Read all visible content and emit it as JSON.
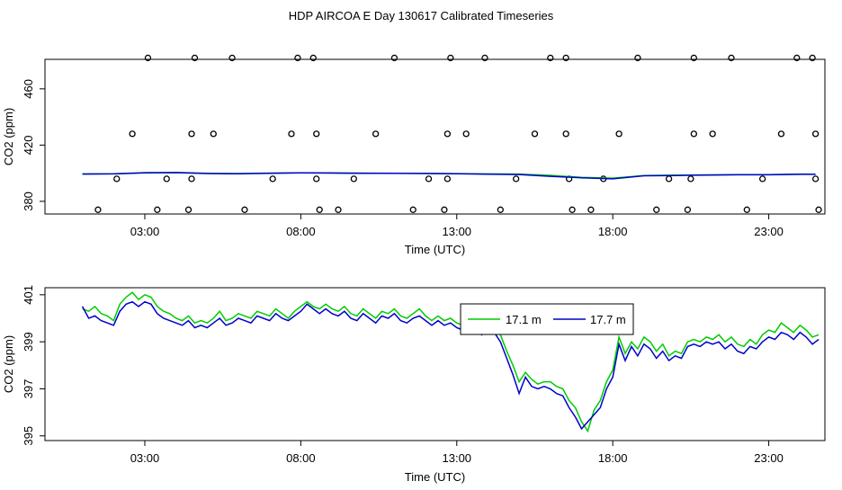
{
  "page_title": "HDP AIRCOA E  Day 130617  Calibrated Timeseries",
  "chart_data": [
    {
      "type": "scatter",
      "xlabel": "Time (UTC)",
      "ylabel": "CO2 (ppm)",
      "x_ticks": [
        {
          "hours": 3,
          "label": "03:00"
        },
        {
          "hours": 8,
          "label": "08:00"
        },
        {
          "hours": 13,
          "label": "13:00"
        },
        {
          "hours": 18,
          "label": "18:00"
        },
        {
          "hours": 23,
          "label": "23:00"
        }
      ],
      "y_ticks": [
        380,
        420,
        460
      ],
      "xlim": [
        -0.2,
        24.8
      ],
      "ylim": [
        371,
        481
      ],
      "grid": false,
      "series": [
        {
          "color": "#000000",
          "marker": "open-circle",
          "points": [
            [
              1.5,
              374
            ],
            [
              2.6,
              428
            ],
            [
              2.1,
              396
            ],
            [
              3.1,
              482
            ],
            [
              3.4,
              374
            ],
            [
              3.7,
              396
            ],
            [
              4.4,
              374
            ],
            [
              4.5,
              396
            ],
            [
              4.5,
              428
            ],
            [
              4.6,
              482
            ],
            [
              5.2,
              428
            ],
            [
              5.8,
              482
            ],
            [
              6.2,
              374
            ],
            [
              7.1,
              396
            ],
            [
              7.7,
              428
            ],
            [
              7.9,
              482
            ],
            [
              8.4,
              482
            ],
            [
              8.5,
              428
            ],
            [
              8.5,
              396
            ],
            [
              8.6,
              374
            ],
            [
              9.2,
              374
            ],
            [
              9.7,
              396
            ],
            [
              10.4,
              428
            ],
            [
              11.0,
              482
            ],
            [
              11.6,
              374
            ],
            [
              12.1,
              396
            ],
            [
              12.6,
              374
            ],
            [
              12.7,
              396
            ],
            [
              12.7,
              428
            ],
            [
              12.8,
              482
            ],
            [
              13.3,
              428
            ],
            [
              13.9,
              482
            ],
            [
              14.4,
              374
            ],
            [
              14.9,
              396
            ],
            [
              15.5,
              428
            ],
            [
              16.0,
              482
            ],
            [
              16.5,
              482
            ],
            [
              16.5,
              428
            ],
            [
              16.6,
              396
            ],
            [
              16.7,
              374
            ],
            [
              17.3,
              374
            ],
            [
              17.7,
              396
            ],
            [
              18.2,
              428
            ],
            [
              18.8,
              482
            ],
            [
              19.4,
              374
            ],
            [
              19.8,
              396
            ],
            [
              20.4,
              374
            ],
            [
              20.5,
              396
            ],
            [
              20.6,
              428
            ],
            [
              20.6,
              482
            ],
            [
              21.2,
              428
            ],
            [
              21.8,
              482
            ],
            [
              22.3,
              374
            ],
            [
              22.8,
              396
            ],
            [
              23.4,
              428
            ],
            [
              23.9,
              482
            ],
            [
              24.4,
              482
            ],
            [
              24.5,
              428
            ],
            [
              24.5,
              396
            ],
            [
              24.6,
              374
            ]
          ]
        },
        {
          "color": "#00cc00",
          "style": "line",
          "x": [
            1,
            2,
            3,
            4,
            5,
            6,
            7,
            8,
            9,
            10,
            11,
            12,
            13,
            14,
            15,
            16,
            17,
            18,
            19,
            20,
            21,
            22,
            23,
            24,
            24.5
          ],
          "y": [
            399.5,
            399.6,
            400.4,
            400.6,
            400.0,
            399.8,
            400.1,
            400.3,
            400.2,
            400.1,
            400.0,
            399.9,
            399.7,
            399.5,
            399.4,
            398.5,
            397.0,
            396.5,
            398.4,
            398.6,
            398.8,
            399.0,
            399.0,
            399.4,
            399.3
          ]
        },
        {
          "color": "#0000cc",
          "style": "line",
          "x": [
            1,
            2,
            3,
            4,
            5,
            6,
            7,
            8,
            9,
            10,
            11,
            12,
            13,
            14,
            15,
            16,
            17,
            18,
            19,
            20,
            21,
            22,
            23,
            24,
            24.5
          ],
          "y": [
            399.4,
            399.5,
            400.2,
            400.4,
            399.8,
            399.6,
            399.9,
            400.2,
            400.1,
            400.0,
            399.9,
            399.8,
            399.6,
            399.3,
            399.1,
            397.8,
            396.8,
            396.0,
            398.2,
            398.4,
            398.7,
            398.9,
            398.9,
            399.2,
            399.2
          ]
        }
      ]
    },
    {
      "type": "line",
      "xlabel": "Time (UTC)",
      "ylabel": "CO2 (ppm)",
      "x_ticks": [
        {
          "hours": 3,
          "label": "03:00"
        },
        {
          "hours": 8,
          "label": "08:00"
        },
        {
          "hours": 13,
          "label": "13:00"
        },
        {
          "hours": 18,
          "label": "18:00"
        },
        {
          "hours": 23,
          "label": "23:00"
        }
      ],
      "y_ticks": [
        395,
        397,
        399,
        401
      ],
      "xlim": [
        -0.2,
        24.8
      ],
      "ylim": [
        394.8,
        401.3
      ],
      "grid": false,
      "legend": {
        "placement": "top-center"
      },
      "series": [
        {
          "name": "17.1 m",
          "color": "#00cc00",
          "x": [
            1.0,
            1.2,
            1.4,
            1.6,
            1.8,
            2.0,
            2.2,
            2.4,
            2.6,
            2.8,
            3.0,
            3.2,
            3.4,
            3.6,
            3.8,
            4.0,
            4.2,
            4.4,
            4.6,
            4.8,
            5.0,
            5.2,
            5.4,
            5.6,
            5.8,
            6.0,
            6.2,
            6.4,
            6.6,
            6.8,
            7.0,
            7.2,
            7.4,
            7.6,
            7.8,
            8.0,
            8.2,
            8.4,
            8.6,
            8.8,
            9.0,
            9.2,
            9.4,
            9.6,
            9.8,
            10.0,
            10.2,
            10.4,
            10.6,
            10.8,
            11.0,
            11.2,
            11.4,
            11.6,
            11.8,
            12.0,
            12.2,
            12.4,
            12.6,
            12.8,
            13.0,
            13.2,
            13.4,
            13.6,
            13.8,
            14.0,
            14.2,
            14.4,
            14.6,
            14.8,
            15.0,
            15.2,
            15.4,
            15.6,
            15.8,
            16.0,
            16.2,
            16.4,
            16.6,
            16.8,
            17.0,
            17.2,
            17.4,
            17.6,
            17.8,
            18.0,
            18.2,
            18.4,
            18.6,
            18.8,
            19.0,
            19.2,
            19.4,
            19.6,
            19.8,
            20.0,
            20.2,
            20.4,
            20.6,
            20.8,
            21.0,
            21.2,
            21.4,
            21.6,
            21.8,
            22.0,
            22.2,
            22.4,
            22.6,
            22.8,
            23.0,
            23.2,
            23.4,
            23.6,
            23.8,
            24.0,
            24.2,
            24.4,
            24.6
          ],
          "y": [
            400.4,
            400.3,
            400.5,
            400.2,
            400.1,
            399.9,
            400.6,
            400.9,
            401.1,
            400.8,
            401.0,
            400.9,
            400.5,
            400.3,
            400.2,
            400.0,
            399.9,
            400.1,
            399.8,
            399.9,
            399.8,
            400.0,
            400.3,
            399.9,
            400.0,
            400.2,
            400.1,
            400.0,
            400.3,
            400.2,
            400.1,
            400.4,
            400.2,
            400.0,
            400.3,
            400.5,
            400.7,
            400.5,
            400.4,
            400.6,
            400.4,
            400.3,
            400.5,
            400.2,
            400.1,
            400.4,
            400.2,
            400.0,
            400.3,
            400.2,
            400.4,
            400.1,
            400.0,
            400.2,
            400.4,
            400.1,
            399.9,
            400.1,
            399.9,
            400.0,
            399.8,
            399.7,
            399.9,
            399.8,
            399.5,
            399.7,
            399.6,
            399.3,
            398.6,
            398.0,
            397.3,
            397.7,
            397.4,
            397.2,
            397.3,
            397.3,
            397.1,
            397.0,
            396.5,
            396.2,
            395.6,
            395.2,
            396.1,
            396.5,
            397.3,
            397.8,
            399.2,
            398.5,
            399.0,
            398.7,
            399.2,
            399.0,
            398.6,
            398.9,
            398.4,
            398.6,
            398.5,
            399.0,
            399.1,
            399.0,
            399.2,
            399.1,
            399.3,
            399.0,
            399.2,
            398.9,
            398.8,
            399.1,
            398.9,
            399.3,
            399.5,
            399.4,
            399.8,
            399.6,
            399.4,
            399.7,
            399.5,
            399.2,
            399.3
          ]
        },
        {
          "name": "17.7 m",
          "color": "#0000cc",
          "x": [
            1.0,
            1.2,
            1.4,
            1.6,
            1.8,
            2.0,
            2.2,
            2.4,
            2.6,
            2.8,
            3.0,
            3.2,
            3.4,
            3.6,
            3.8,
            4.0,
            4.2,
            4.4,
            4.6,
            4.8,
            5.0,
            5.2,
            5.4,
            5.6,
            5.8,
            6.0,
            6.2,
            6.4,
            6.6,
            6.8,
            7.0,
            7.2,
            7.4,
            7.6,
            7.8,
            8.0,
            8.2,
            8.4,
            8.6,
            8.8,
            9.0,
            9.2,
            9.4,
            9.6,
            9.8,
            10.0,
            10.2,
            10.4,
            10.6,
            10.8,
            11.0,
            11.2,
            11.4,
            11.6,
            11.8,
            12.0,
            12.2,
            12.4,
            12.6,
            12.8,
            13.0,
            13.2,
            13.4,
            13.6,
            13.8,
            14.0,
            14.2,
            14.4,
            14.6,
            14.8,
            15.0,
            15.2,
            15.4,
            15.6,
            15.8,
            16.0,
            16.2,
            16.4,
            16.6,
            16.8,
            17.0,
            17.2,
            17.4,
            17.6,
            17.8,
            18.0,
            18.2,
            18.4,
            18.6,
            18.8,
            19.0,
            19.2,
            19.4,
            19.6,
            19.8,
            20.0,
            20.2,
            20.4,
            20.6,
            20.8,
            21.0,
            21.2,
            21.4,
            21.6,
            21.8,
            22.0,
            22.2,
            22.4,
            22.6,
            22.8,
            23.0,
            23.2,
            23.4,
            23.6,
            23.8,
            24.0,
            24.2,
            24.4,
            24.6
          ],
          "y": [
            400.5,
            400.0,
            400.1,
            399.9,
            399.8,
            399.7,
            400.3,
            400.6,
            400.7,
            400.5,
            400.7,
            400.6,
            400.2,
            400.0,
            399.9,
            399.8,
            399.7,
            399.9,
            399.6,
            399.7,
            399.6,
            399.8,
            400.0,
            399.7,
            399.8,
            400.0,
            399.9,
            399.8,
            400.1,
            400.0,
            399.9,
            400.2,
            400.0,
            399.9,
            400.1,
            400.3,
            400.6,
            400.4,
            400.2,
            400.4,
            400.2,
            400.1,
            400.3,
            400.0,
            399.9,
            400.2,
            400.0,
            399.8,
            400.1,
            400.0,
            400.2,
            399.9,
            399.8,
            400.0,
            400.1,
            399.9,
            399.7,
            399.9,
            399.7,
            399.8,
            399.6,
            399.5,
            399.7,
            399.6,
            399.3,
            399.5,
            399.4,
            399.0,
            398.3,
            397.6,
            396.8,
            397.5,
            397.1,
            397.0,
            397.1,
            397.0,
            396.8,
            396.7,
            396.2,
            395.8,
            395.3,
            395.6,
            395.9,
            396.2,
            397.0,
            397.5,
            398.9,
            398.2,
            398.8,
            398.4,
            398.9,
            398.7,
            398.3,
            398.6,
            398.2,
            398.4,
            398.3,
            398.8,
            398.9,
            398.8,
            399.0,
            398.9,
            399.0,
            398.7,
            398.9,
            398.6,
            398.5,
            398.8,
            398.7,
            399.0,
            399.2,
            399.1,
            399.4,
            399.3,
            399.1,
            399.4,
            399.2,
            398.9,
            399.1
          ]
        }
      ]
    }
  ]
}
